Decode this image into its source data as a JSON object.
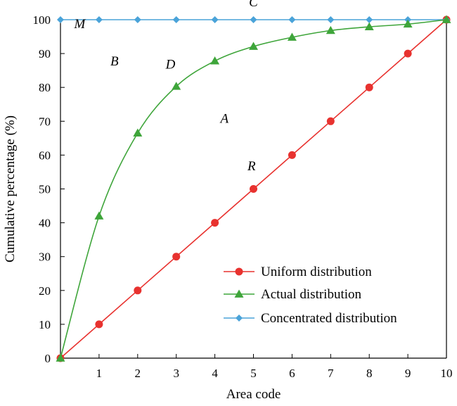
{
  "chart_data": {
    "type": "line",
    "xlabel": "Area code",
    "ylabel": "Cumulative percentage (%)",
    "xlim": [
      0,
      10
    ],
    "ylim": [
      0,
      100
    ],
    "x_ticks": [
      "1",
      "2",
      "3",
      "4",
      "5",
      "6",
      "7",
      "8",
      "9",
      "10"
    ],
    "y_ticks": [
      "0",
      "10",
      "20",
      "30",
      "40",
      "50",
      "60",
      "70",
      "80",
      "90",
      "100"
    ],
    "grid": false,
    "legend_position": "bottom-right",
    "series": [
      {
        "name": "Uniform distribution",
        "color": "#e8322f",
        "marker": "circle",
        "x": [
          0,
          1,
          2,
          3,
          4,
          5,
          6,
          7,
          8,
          9,
          10
        ],
        "y": [
          0,
          10,
          20,
          30,
          40,
          50,
          60,
          70,
          80,
          90,
          100
        ]
      },
      {
        "name": "Actual distribution",
        "color": "#3ea53a",
        "marker": "triangle",
        "x": [
          0,
          1,
          2,
          3,
          4,
          5,
          6,
          7,
          8,
          9,
          10
        ],
        "y": [
          0,
          42,
          66.5,
          80.3,
          87.8,
          92.1,
          94.8,
          96.8,
          97.9,
          98.7,
          100
        ]
      },
      {
        "name": "Concentrated distribution",
        "color": "#4aa3d9",
        "marker": "diamond",
        "x": [
          0,
          1,
          2,
          3,
          4,
          5,
          6,
          7,
          8,
          9,
          10
        ],
        "y": [
          100,
          100,
          100,
          100,
          100,
          100,
          100,
          100,
          100,
          100,
          100
        ]
      }
    ],
    "annotations": [
      {
        "text": "C",
        "x": 5,
        "y": 104
      },
      {
        "text": "M",
        "x": 0.5,
        "y": 97.5
      },
      {
        "text": "B",
        "x": 1.4,
        "y": 86.5
      },
      {
        "text": "D",
        "x": 2.85,
        "y": 85.5
      },
      {
        "text": "A",
        "x": 4.25,
        "y": 69.5
      },
      {
        "text": "R",
        "x": 4.95,
        "y": 55.5
      }
    ]
  }
}
